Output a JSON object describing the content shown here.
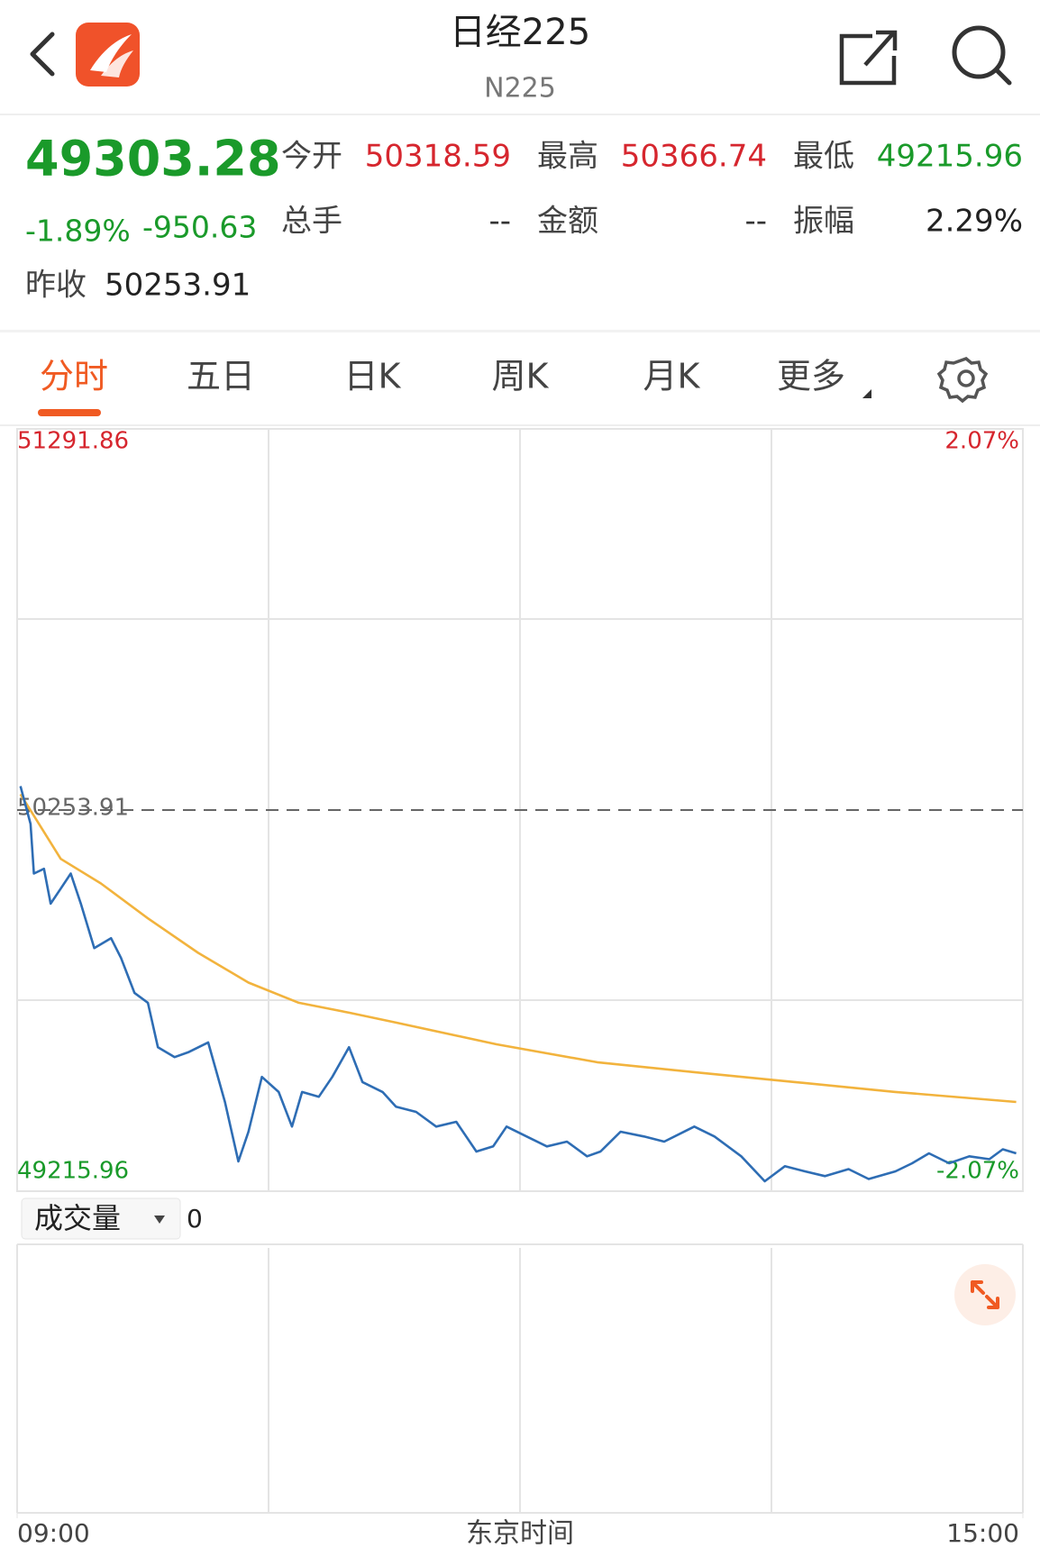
{
  "header": {
    "title": "日经225",
    "subtitle": "N225"
  },
  "quote": {
    "price": "49303.28",
    "change_pct": "-1.89%",
    "change": "-950.63",
    "prev_close_label": "昨收",
    "prev_close": "50253.91",
    "fields": [
      {
        "label": "今开",
        "value": "50318.59"
      },
      {
        "label": "最高",
        "value": "50366.74"
      },
      {
        "label": "最低",
        "value": "49215.96"
      },
      {
        "label": "总手",
        "value": "--"
      },
      {
        "label": "金额",
        "value": "--"
      },
      {
        "label": "振幅",
        "value": "2.29%"
      }
    ]
  },
  "tabs": [
    "分时",
    "五日",
    "日K",
    "周K",
    "月K",
    "更多"
  ],
  "chart_data": {
    "type": "line",
    "x_label": "东京时间",
    "xlim": [
      0,
      300
    ],
    "xticks": [
      {
        "value": 0,
        "label": "09:00"
      },
      {
        "value": 300,
        "label": "15:00"
      }
    ],
    "ylim": [
      49215.96,
      51291.86
    ],
    "yticks": [
      51291.86,
      50253.91,
      49215.96
    ],
    "y2lim": [
      -2.07,
      2.07
    ],
    "y2ticks": [
      {
        "value": 2.07,
        "label": "2.07%"
      },
      {
        "value": -2.07,
        "label": "-2.07%"
      }
    ],
    "series": [
      {
        "color": "#2e6db4",
        "x": [
          1,
          4,
          5,
          8,
          10,
          13,
          16,
          19,
          23,
          28,
          31,
          35,
          39,
          42,
          47,
          51,
          57,
          62,
          66,
          69,
          73,
          78,
          82,
          85,
          90,
          94,
          99,
          103,
          109,
          113,
          119,
          125,
          131,
          137,
          142,
          146,
          152,
          158,
          164,
          170,
          174,
          180,
          187,
          193,
          202,
          208,
          216,
          223,
          229,
          235,
          241,
          248,
          254,
          262,
          267,
          272,
          278,
          284,
          290,
          294,
          298
        ],
        "values": [
          50319,
          50216,
          50081,
          50094,
          49999,
          50040,
          50081,
          49999,
          49878,
          49905,
          49851,
          49756,
          49729,
          49608,
          49581,
          49594,
          49621,
          49459,
          49297,
          49378,
          49527,
          49486,
          49392,
          49486,
          49473,
          49527,
          49608,
          49513,
          49486,
          49446,
          49432,
          49392,
          49405,
          49324,
          49338,
          49392,
          49365,
          49338,
          49351,
          49311,
          49324,
          49378,
          49365,
          49351,
          49392,
          49365,
          49311,
          49243,
          49284,
          49270,
          49257,
          49276,
          49249,
          49270,
          49292,
          49319,
          49292,
          49311,
          49303,
          49330,
          49319
        ]
      },
      {
        "color": "#f2b33d",
        "x": [
          1,
          13,
          25,
          39,
          54,
          69,
          84,
          99,
          113,
          143,
          173,
          202,
          232,
          262,
          298
        ],
        "values": [
          50297,
          50121,
          50054,
          49959,
          49865,
          49784,
          49729,
          49702,
          49675,
          49616,
          49567,
          49540,
          49513,
          49486,
          49459
        ]
      }
    ],
    "volume": {
      "label": "成交量",
      "value": "0"
    }
  }
}
